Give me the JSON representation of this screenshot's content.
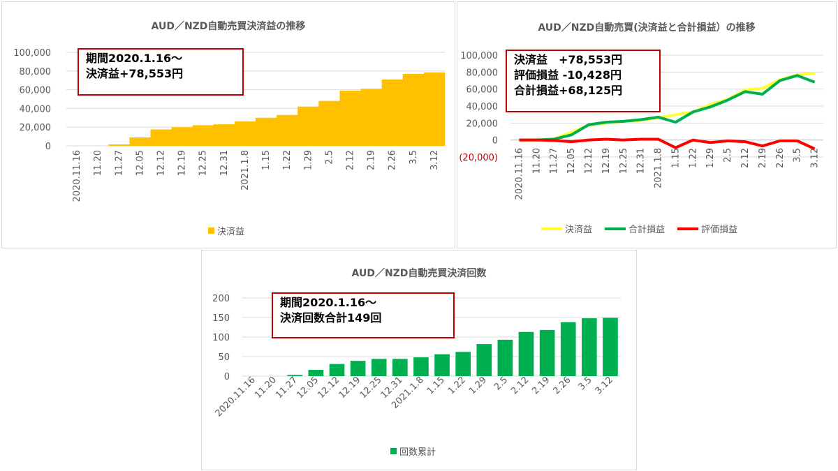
{
  "charts": [
    {
      "title": "AUD／NZD自動売買決済益の推移",
      "annotation": [
        "期間2020.1.16～",
        "決済益+78,553円"
      ],
      "legend": "決済益"
    },
    {
      "title": "AUD／NZD自動売買(決済益と合計損益）の推移",
      "annotation": [
        "決済益　+78,553円",
        "評価損益 -10,428円",
        "合計損益+68,125円"
      ],
      "legend": [
        "決済益",
        "合計損益",
        "評価損益"
      ]
    },
    {
      "title": "AUD／NZD自動売買決済回数",
      "annotation": [
        "期間2020.1.16～",
        "決済回数合計149回"
      ],
      "legend": "回数累計"
    }
  ],
  "chart_data": [
    {
      "type": "area",
      "title": "AUD／NZD自動売買決済益の推移",
      "categories": [
        "2020.11.16",
        "11.20",
        "11.27",
        "12.05",
        "12.12",
        "12.19",
        "12.25",
        "12.31",
        "2021.1.8",
        "1.15",
        "1.22",
        "1.29",
        "2.5",
        "2.12",
        "2.19",
        "2.26",
        "3.5",
        "3.12"
      ],
      "yticks": [
        "0",
        "20,000",
        "40,000",
        "60,000",
        "80,000",
        "100,000"
      ],
      "ylim": [
        0,
        100000
      ],
      "series": [
        {
          "name": "決済益",
          "color": "#ffc000",
          "values": [
            0,
            0,
            1500,
            9000,
            17500,
            20000,
            22000,
            23000,
            26000,
            30000,
            33000,
            42000,
            48000,
            59000,
            61000,
            71000,
            77000,
            78553
          ]
        }
      ]
    },
    {
      "type": "line",
      "title": "AUD／NZD自動売買(決済益と合計損益）の推移",
      "categories": [
        "2020.11.16",
        "11.20",
        "11.27",
        "12.05",
        "12.12",
        "12.19",
        "12.25",
        "12.31",
        "2021.1.8",
        "1.15",
        "1.22",
        "1.29",
        "2.5",
        "2.12",
        "2.19",
        "2.26",
        "3.5",
        "3.12"
      ],
      "yticks": [
        "(20,000)",
        "0",
        "20,000",
        "40,000",
        "60,000",
        "80,000",
        "100,000"
      ],
      "ylim": [
        -20000,
        100000
      ],
      "series": [
        {
          "name": "決済益",
          "color": "#ffff33",
          "values": [
            0,
            0,
            1500,
            9000,
            17500,
            20000,
            22000,
            23000,
            26000,
            30000,
            33000,
            42000,
            48000,
            59000,
            61000,
            71000,
            77000,
            78553
          ]
        },
        {
          "name": "合計損益",
          "color": "#00b050",
          "values": [
            0,
            0,
            1000,
            6000,
            18000,
            21000,
            22000,
            24000,
            27000,
            21000,
            33000,
            39000,
            47000,
            57000,
            54000,
            70000,
            76000,
            68125
          ]
        },
        {
          "name": "評価損益",
          "color": "#ff0000",
          "values": [
            0,
            0,
            -500,
            -2000,
            0,
            1000,
            0,
            1000,
            1000,
            -9000,
            0,
            -3000,
            -1000,
            -2000,
            -7000,
            -1000,
            -1000,
            -10428
          ]
        }
      ]
    },
    {
      "type": "bar",
      "title": "AUD／NZD自動売買決済回数",
      "categories": [
        "2020.11.16",
        "11.20",
        "11.27",
        "12.05",
        "12.12",
        "12.19",
        "12.25",
        "12.31",
        "2021.1.8",
        "1.15",
        "1.22",
        "1.29",
        "2.5",
        "2.12",
        "2.19",
        "2.26",
        "3.5",
        "3.12"
      ],
      "yticks": [
        "0",
        "50",
        "100",
        "150",
        "200"
      ],
      "ylim": [
        0,
        200
      ],
      "series": [
        {
          "name": "回数累計",
          "color": "#00b050",
          "values": [
            0,
            0,
            3,
            16,
            31,
            39,
            44,
            44,
            48,
            56,
            62,
            82,
            93,
            113,
            118,
            138,
            148,
            149
          ]
        }
      ]
    }
  ]
}
